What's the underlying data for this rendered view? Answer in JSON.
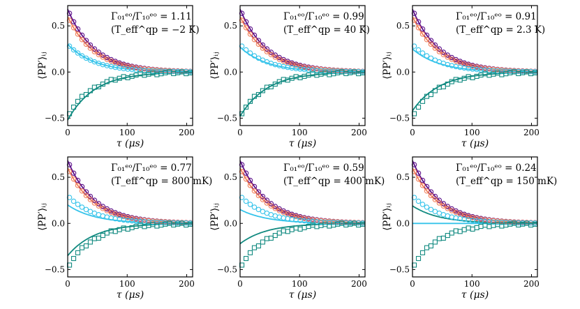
{
  "figure": {
    "ylabel": "⟨PP′⟩ᵢⱼ",
    "xlabel": "τ (μs)",
    "colors": {
      "purple": "#5b0f8a",
      "orange": "#f2805a",
      "cyan": "#35c3ea",
      "teal": "#118a80"
    }
  },
  "chart_data": [
    {
      "type": "scatter",
      "title": "",
      "ratio_text": "Γ₀₁ᵉᵒ/Γ₁₀ᵉᵒ = 1.11",
      "temp_text": "(T_eff^qp = −2 K)",
      "xlabel": "τ (μs)",
      "ylabel": "⟨PP′⟩ᵢⱼ",
      "xlim": [
        0,
        210
      ],
      "ylim": [
        -0.58,
        0.72
      ],
      "xticks": [
        0,
        100,
        200
      ],
      "yticks": [
        -0.5,
        0.0,
        0.5
      ],
      "xtick_labels": [
        "0",
        "100",
        "200"
      ],
      "ytick_labels": [
        "−0.5",
        "0.0",
        "0.5"
      ],
      "series": [
        {
          "name": "purple",
          "color": "#5b0f8a",
          "marker": "circle",
          "data_a": 0.68,
          "fit_a": 0.68,
          "tau": 45
        },
        {
          "name": "orange",
          "color": "#f2805a",
          "marker": "circle",
          "data_a": 0.6,
          "fit_a": 0.6,
          "tau": 45
        },
        {
          "name": "cyan",
          "color": "#35c3ea",
          "marker": "circle",
          "data_a": 0.3,
          "fit_a": 0.3,
          "tau": 45
        },
        {
          "name": "teal",
          "color": "#118a80",
          "marker": "square",
          "data_a": -0.47,
          "fit_a": -0.52,
          "tau": 45
        }
      ]
    },
    {
      "type": "scatter",
      "title": "",
      "ratio_text": "Γ₀₁ᵉᵒ/Γ₁₀ᵉᵒ = 0.99",
      "temp_text": "(T_eff^qp = 40 K)",
      "xlabel": "τ (μs)",
      "ylabel": "⟨PP′⟩ᵢⱼ",
      "xlim": [
        0,
        210
      ],
      "ylim": [
        -0.58,
        0.72
      ],
      "xticks": [
        0,
        100,
        200
      ],
      "yticks": [
        -0.5,
        0.0,
        0.5
      ],
      "xtick_labels": [
        "0",
        "100",
        "200"
      ],
      "ytick_labels": [
        "−0.5",
        "0.0",
        "0.5"
      ],
      "series": [
        {
          "name": "purple",
          "color": "#5b0f8a",
          "marker": "circle",
          "data_a": 0.68,
          "fit_a": 0.68,
          "tau": 45
        },
        {
          "name": "orange",
          "color": "#f2805a",
          "marker": "circle",
          "data_a": 0.6,
          "fit_a": 0.6,
          "tau": 45
        },
        {
          "name": "cyan",
          "color": "#35c3ea",
          "marker": "circle",
          "data_a": 0.3,
          "fit_a": 0.27,
          "tau": 45
        },
        {
          "name": "teal",
          "color": "#118a80",
          "marker": "square",
          "data_a": -0.47,
          "fit_a": -0.48,
          "tau": 45
        }
      ]
    },
    {
      "type": "scatter",
      "title": "",
      "ratio_text": "Γ₀₁ᵉᵒ/Γ₁₀ᵉᵒ = 0.91",
      "temp_text": "(T_eff^qp = 2.3 K)",
      "xlabel": "τ (μs)",
      "ylabel": "⟨PP′⟩ᵢⱼ",
      "xlim": [
        0,
        210
      ],
      "ylim": [
        -0.58,
        0.72
      ],
      "xticks": [
        0,
        100,
        200
      ],
      "yticks": [
        -0.5,
        0.0,
        0.5
      ],
      "xtick_labels": [
        "0",
        "100",
        "200"
      ],
      "ytick_labels": [
        "−0.5",
        "0.0",
        "0.5"
      ],
      "series": [
        {
          "name": "purple",
          "color": "#5b0f8a",
          "marker": "circle",
          "data_a": 0.68,
          "fit_a": 0.68,
          "tau": 45
        },
        {
          "name": "orange",
          "color": "#f2805a",
          "marker": "circle",
          "data_a": 0.6,
          "fit_a": 0.6,
          "tau": 45
        },
        {
          "name": "cyan",
          "color": "#35c3ea",
          "marker": "circle",
          "data_a": 0.3,
          "fit_a": 0.25,
          "tau": 45
        },
        {
          "name": "teal",
          "color": "#118a80",
          "marker": "square",
          "data_a": -0.47,
          "fit_a": -0.42,
          "tau": 45
        }
      ]
    },
    {
      "type": "scatter",
      "title": "",
      "ratio_text": "Γ₀₁ᵉᵒ/Γ₁₀ᵉᵒ = 0.77",
      "temp_text": "(T_eff^qp = 800 mK)",
      "xlabel": "τ (μs)",
      "ylabel": "⟨PP′⟩ᵢⱼ",
      "xlim": [
        0,
        210
      ],
      "ylim": [
        -0.58,
        0.72
      ],
      "xticks": [
        0,
        100,
        200
      ],
      "yticks": [
        -0.5,
        0.0,
        0.5
      ],
      "xtick_labels": [
        "0",
        "100",
        "200"
      ],
      "ytick_labels": [
        "−0.5",
        "0.0",
        "0.5"
      ],
      "series": [
        {
          "name": "purple",
          "color": "#5b0f8a",
          "marker": "circle",
          "data_a": 0.68,
          "fit_a": 0.68,
          "tau": 45
        },
        {
          "name": "orange",
          "color": "#f2805a",
          "marker": "circle",
          "data_a": 0.6,
          "fit_a": 0.6,
          "tau": 45
        },
        {
          "name": "cyan",
          "color": "#35c3ea",
          "marker": "circle",
          "data_a": 0.3,
          "fit_a": 0.2,
          "tau": 45
        },
        {
          "name": "teal",
          "color": "#118a80",
          "marker": "square",
          "data_a": -0.47,
          "fit_a": -0.35,
          "tau": 45
        }
      ]
    },
    {
      "type": "scatter",
      "title": "",
      "ratio_text": "Γ₀₁ᵉᵒ/Γ₁₀ᵉᵒ = 0.59",
      "temp_text": "(T_eff^qp = 400 mK)",
      "xlabel": "τ (μs)",
      "ylabel": "⟨PP′⟩ᵢⱼ",
      "xlim": [
        0,
        210
      ],
      "ylim": [
        -0.58,
        0.72
      ],
      "xticks": [
        0,
        100,
        200
      ],
      "yticks": [
        -0.5,
        0.0,
        0.5
      ],
      "xtick_labels": [
        "0",
        "100",
        "200"
      ],
      "ytick_labels": [
        "−0.5",
        "0.0",
        "0.5"
      ],
      "series": [
        {
          "name": "purple",
          "color": "#5b0f8a",
          "marker": "circle",
          "data_a": 0.68,
          "fit_a": 0.68,
          "tau": 45
        },
        {
          "name": "orange",
          "color": "#f2805a",
          "marker": "circle",
          "data_a": 0.6,
          "fit_a": 0.6,
          "tau": 45
        },
        {
          "name": "cyan",
          "color": "#35c3ea",
          "marker": "circle",
          "data_a": 0.3,
          "fit_a": 0.15,
          "tau": 45
        },
        {
          "name": "teal",
          "color": "#118a80",
          "marker": "square",
          "data_a": -0.47,
          "fit_a": -0.22,
          "tau": 45
        }
      ]
    },
    {
      "type": "scatter",
      "title": "",
      "ratio_text": "Γ₀₁ᵉᵒ/Γ₁₀ᵉᵒ = 0.24",
      "temp_text": "(T_eff^qp = 150 mK)",
      "xlabel": "τ (μs)",
      "ylabel": "⟨PP′⟩ᵢⱼ",
      "xlim": [
        0,
        210
      ],
      "ylim": [
        -0.58,
        0.72
      ],
      "xticks": [
        0,
        100,
        200
      ],
      "yticks": [
        -0.5,
        0.0,
        0.5
      ],
      "xtick_labels": [
        "0",
        "100",
        "200"
      ],
      "ytick_labels": [
        "−0.5",
        "0.0",
        "0.5"
      ],
      "series": [
        {
          "name": "purple",
          "color": "#5b0f8a",
          "marker": "circle",
          "data_a": 0.68,
          "fit_a": 0.68,
          "tau": 45
        },
        {
          "name": "orange",
          "color": "#f2805a",
          "marker": "circle",
          "data_a": 0.6,
          "fit_a": 0.6,
          "tau": 45
        },
        {
          "name": "cyan",
          "color": "#35c3ea",
          "marker": "circle",
          "data_a": 0.3,
          "fit_a": 0.0,
          "tau": 45
        },
        {
          "name": "teal",
          "color": "#118a80",
          "marker": "square",
          "data_a": -0.47,
          "fit_a": 0.19,
          "tau": 45
        }
      ]
    }
  ]
}
